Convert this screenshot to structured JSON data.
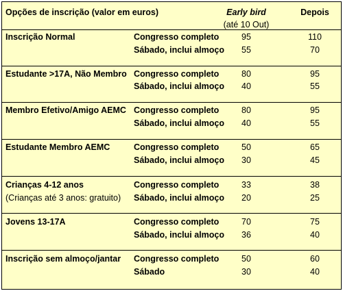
{
  "header": {
    "title": "Opções de inscrição (valor em euros)",
    "early_bird": "Early bird",
    "early_bird_note": "(até 10 Out)",
    "depois": "Depois"
  },
  "groups": [
    {
      "name": "Inscrição Normal",
      "note": "",
      "rows": [
        {
          "option": "Congresso completo",
          "early": "95",
          "after": "110"
        },
        {
          "option": "Sábado, inclui almoço",
          "early": "55",
          "after": "70"
        }
      ]
    },
    {
      "name": "Estudante >17A, Não Membro",
      "note": "",
      "rows": [
        {
          "option": "Congresso completo",
          "early": "80",
          "after": "95"
        },
        {
          "option": "Sábado, inclui almoço",
          "early": "40",
          "after": "55"
        }
      ]
    },
    {
      "name": "Membro Efetivo/Amigo AEMC",
      "note": "",
      "rows": [
        {
          "option": "Congresso completo",
          "early": "80",
          "after": "95"
        },
        {
          "option": "Sábado, inclui almoço",
          "early": "40",
          "after": "55"
        }
      ]
    },
    {
      "name": "Estudante Membro AEMC",
      "note": "",
      "rows": [
        {
          "option": "Congresso completo",
          "early": "50",
          "after": "65"
        },
        {
          "option": "Sábado, inclui almoço",
          "early": "30",
          "after": "45"
        }
      ]
    },
    {
      "name": "Crianças 4-12 anos",
      "note": "(Crianças até 3 anos: gratuito)",
      "rows": [
        {
          "option": "Congresso completo",
          "early": "33",
          "after": "38"
        },
        {
          "option": "Sábado, inclui almoço",
          "early": "20",
          "after": "25"
        }
      ]
    },
    {
      "name": "Jovens 13-17A",
      "note": "",
      "rows": [
        {
          "option": "Congresso completo",
          "early": "70",
          "after": "75"
        },
        {
          "option": "Sábado, inclui almoço",
          "early": "36",
          "after": "40"
        }
      ]
    },
    {
      "name": "Inscrição sem almoço/jantar",
      "note": "",
      "rows": [
        {
          "option": "Congresso completo",
          "early": "50",
          "after": "60"
        },
        {
          "option": "Sábado",
          "early": "30",
          "after": "40"
        }
      ]
    }
  ]
}
